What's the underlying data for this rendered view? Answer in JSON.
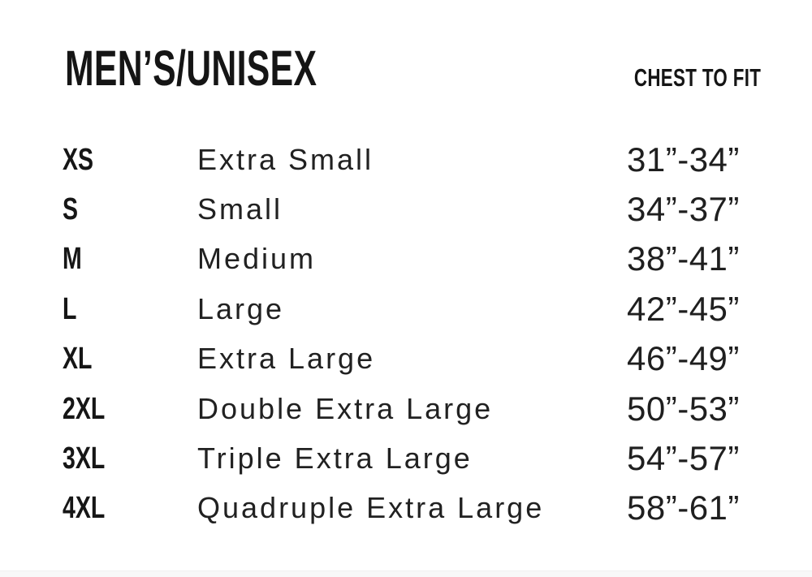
{
  "page": {
    "background_color": "#ffffff",
    "ink_color": "#151515"
  },
  "header": {
    "title": "MEN’S/UNISEX",
    "chest_to_fit_label": "CHEST TO FIT"
  },
  "size_chart": {
    "rows": [
      {
        "code": "XS",
        "name": "Extra Small",
        "chest_range": "31”-34”"
      },
      {
        "code": "S",
        "name": "Small",
        "chest_range": "34”-37”"
      },
      {
        "code": "M",
        "name": "Medium",
        "chest_range": "38”-41”"
      },
      {
        "code": "L",
        "name": "Large",
        "chest_range": "42”-45”"
      },
      {
        "code": "XL",
        "name": "Extra Large",
        "chest_range": "46”-49”"
      },
      {
        "code": "2XL",
        "name": "Double Extra Large",
        "chest_range": "50”-53”"
      },
      {
        "code": "3XL",
        "name": "Triple Extra Large",
        "chest_range": "54”-57”"
      },
      {
        "code": "4XL",
        "name": "Quadruple Extra Large",
        "chest_range": "58”-61”"
      }
    ]
  },
  "chart_data": {
    "type": "table",
    "title": "MEN’S/UNISEX",
    "columns": [
      "Size Code",
      "Size Name",
      "Chest To Fit"
    ],
    "rows": [
      [
        "XS",
        "Extra Small",
        "31”-34”"
      ],
      [
        "S",
        "Small",
        "34”-37”"
      ],
      [
        "M",
        "Medium",
        "38”-41”"
      ],
      [
        "L",
        "Large",
        "42”-45”"
      ],
      [
        "XL",
        "Extra Large",
        "46”-49”"
      ],
      [
        "2XL",
        "Double Extra Large",
        "50”-53”"
      ],
      [
        "3XL",
        "Triple Extra Large",
        "54”-57”"
      ],
      [
        "4XL",
        "Quadruple Extra Large",
        "58”-61”"
      ]
    ],
    "chest_to_fit_inches": [
      {
        "code": "XS",
        "min": 31,
        "max": 34
      },
      {
        "code": "S",
        "min": 34,
        "max": 37
      },
      {
        "code": "M",
        "min": 38,
        "max": 41
      },
      {
        "code": "L",
        "min": 42,
        "max": 45
      },
      {
        "code": "XL",
        "min": 46,
        "max": 49
      },
      {
        "code": "2XL",
        "min": 50,
        "max": 53
      },
      {
        "code": "3XL",
        "min": 54,
        "max": 57
      },
      {
        "code": "4XL",
        "min": 58,
        "max": 61
      }
    ]
  }
}
